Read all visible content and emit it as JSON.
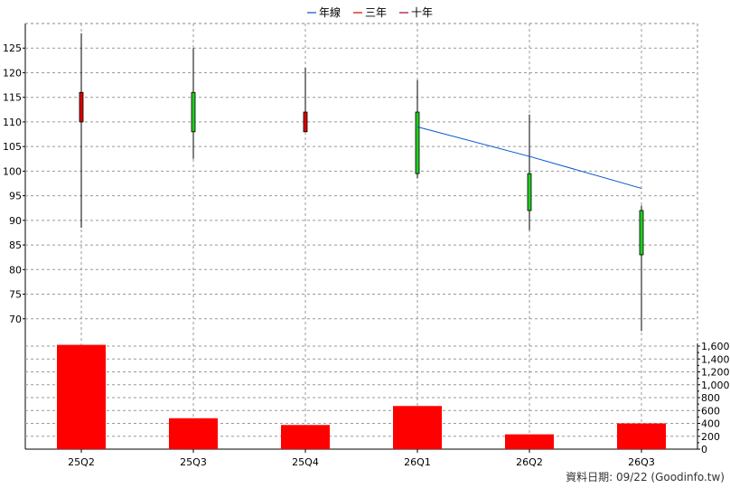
{
  "chart_data": [
    {
      "type": "candlestick",
      "legend": [
        "年線",
        "三年",
        "十年"
      ],
      "legend_colors": [
        "#0055cc",
        "#dd0000",
        "#aa0033"
      ],
      "categories": [
        "25Q2",
        "25Q3",
        "25Q4",
        "26Q1",
        "26Q2",
        "26Q3"
      ],
      "open": [
        110,
        108,
        108,
        112,
        99.5,
        83
      ],
      "high": [
        128,
        125,
        121,
        118.5,
        111.5,
        93
      ],
      "low": [
        88.5,
        102.5,
        108,
        98.5,
        88,
        67.5
      ],
      "close": [
        116,
        116,
        112,
        99.5,
        92,
        92
      ],
      "candle_colors": [
        "#dd0000",
        "#22cc22",
        "#dd0000",
        "#22cc22",
        "#22cc22",
        "#22cc22"
      ],
      "yearline": {
        "x": [
          "26Q1",
          "26Q2",
          "26Q3"
        ],
        "values": [
          109,
          103,
          96.5
        ]
      },
      "ylim": [
        65,
        130
      ],
      "yticks": [
        70,
        75,
        80,
        85,
        90,
        95,
        100,
        105,
        110,
        115,
        120,
        125
      ],
      "grid": true,
      "legend_position": "top-center"
    },
    {
      "type": "bar",
      "categories": [
        "25Q2",
        "25Q3",
        "25Q4",
        "26Q1",
        "26Q2",
        "26Q3"
      ],
      "values": [
        1620,
        480,
        375,
        670,
        230,
        400
      ],
      "color": "#ff0000",
      "ylim": [
        0,
        1600
      ],
      "yticks": [
        0,
        200,
        400,
        600,
        800,
        1000,
        1200,
        1400,
        1600
      ],
      "ytick_labels": [
        "0",
        "200",
        "400",
        "600",
        "800",
        "1,000",
        "1,200",
        "1,400",
        "1,600"
      ],
      "grid": true
    }
  ],
  "footer": "資料日期: 09/22  (Goodinfo.tw)"
}
